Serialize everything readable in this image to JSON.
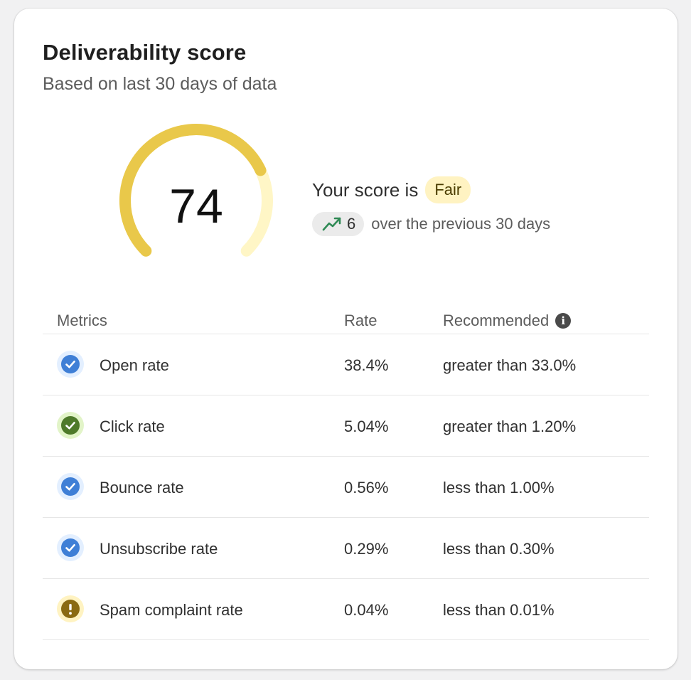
{
  "card": {
    "title": "Deliverability score",
    "subtitle": "Based on last 30 days of data"
  },
  "gauge": {
    "score": "74",
    "fill_fraction": 0.74,
    "fill_color": "#e9c84a",
    "track_color": "#fff6c6"
  },
  "summary": {
    "score_prefix": "Your score is",
    "rating": "Fair",
    "trend_icon": "trending-up-icon",
    "trend_value": "6",
    "trend_text": "over the previous 30 days"
  },
  "table": {
    "headers": {
      "metrics": "Metrics",
      "rate": "Rate",
      "recommended": "Recommended"
    },
    "rows": [
      {
        "name": "Open rate",
        "rate": "38.4%",
        "recommended": "greater than 33.0%",
        "status": "check-blue"
      },
      {
        "name": "Click rate",
        "rate": "5.04%",
        "recommended": "greater than 1.20%",
        "status": "check-green"
      },
      {
        "name": "Bounce rate",
        "rate": "0.56%",
        "recommended": "less than 1.00%",
        "status": "check-blue"
      },
      {
        "name": "Unsubscribe rate",
        "rate": "0.29%",
        "recommended": "less than 0.30%",
        "status": "check-blue"
      },
      {
        "name": "Spam complaint rate",
        "rate": "0.04%",
        "recommended": "less than 0.01%",
        "status": "warning"
      }
    ]
  },
  "status_colors": {
    "check-blue": {
      "ring": "#e3efff",
      "fill": "#3f7fd6"
    },
    "check-green": {
      "ring": "#e2f4c8",
      "fill": "#4e7a2a"
    },
    "warning": {
      "ring": "#fff3c2",
      "fill": "#8a6a12"
    }
  }
}
